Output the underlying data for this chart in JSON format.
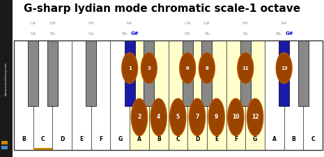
{
  "title": "G-sharp lydian mode chromatic scale-1 octave",
  "title_fontsize": 11,
  "bg_color": "#ffffff",
  "sidebar_color": "#1a1a1a",
  "sidebar_text": "basicmusictheory.com",
  "white_keys": [
    "B",
    "C",
    "D",
    "E",
    "F",
    "G",
    "A",
    "B",
    "C",
    "D",
    "E",
    "F",
    "G",
    "A",
    "B",
    "C"
  ],
  "white_key_highlight": [
    false,
    false,
    false,
    false,
    false,
    false,
    true,
    true,
    true,
    true,
    true,
    true,
    true,
    false,
    false,
    false
  ],
  "black_key_positions": [
    0.5,
    1.5,
    3.5,
    5.5,
    6.5,
    8.5,
    9.5,
    11.5,
    13.5,
    14.5
  ],
  "black_key_labels_line1": [
    "C#",
    "D#",
    "F#",
    "A#",
    "",
    "C#",
    "D#",
    "F#",
    "A#",
    ""
  ],
  "black_key_labels_line2": [
    "Db",
    "Eb",
    "Gb",
    "Bb",
    "",
    "Db",
    "Eb",
    "Gb",
    "Bb",
    ""
  ],
  "black_key_highlight": [
    false,
    false,
    false,
    true,
    false,
    false,
    false,
    false,
    true,
    false
  ],
  "black_key_blue": [
    3,
    8
  ],
  "note_circles_white": [
    {
      "key_idx": 6,
      "number": 2
    },
    {
      "key_idx": 7,
      "number": 4
    },
    {
      "key_idx": 8,
      "number": 5
    },
    {
      "key_idx": 9,
      "number": 7
    },
    {
      "key_idx": 10,
      "number": 9
    },
    {
      "key_idx": 11,
      "number": 10
    },
    {
      "key_idx": 12,
      "number": 12
    }
  ],
  "note_circles_black": [
    {
      "bk_idx": 3,
      "number": 1
    },
    {
      "bk_idx": 4,
      "number": 3
    },
    {
      "bk_idx": 5,
      "number": 6
    },
    {
      "bk_idx": 6,
      "number": 8
    },
    {
      "bk_idx": 7,
      "number": 11
    },
    {
      "bk_idx": 8,
      "number": 13
    }
  ],
  "circle_color": "#9b4400",
  "circle_text_color": "#ffffff",
  "yellow_fill": "#ffffcc",
  "blue_key_color": "#1a1aaa",
  "gray_key_color": "#888888",
  "key_outline": "#333333",
  "orange_underline_key": 1,
  "orange_color": "#cc8800",
  "blue_sidebar_sq": "#4488cc",
  "gsharp_label_bk_indices": [
    3,
    8
  ],
  "n_white": 16
}
